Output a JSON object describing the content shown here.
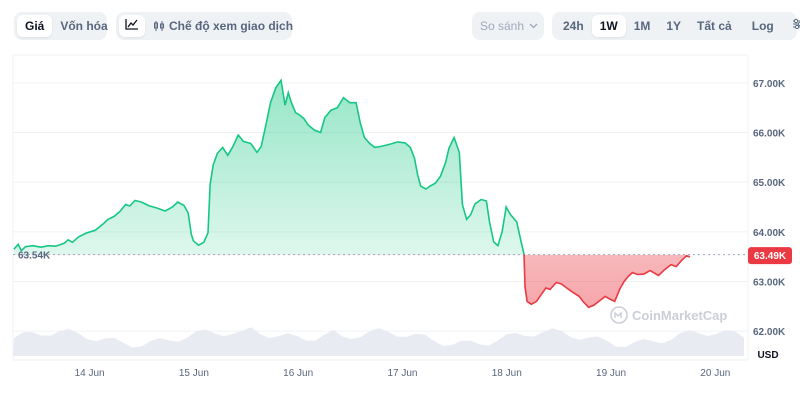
{
  "tabs": {
    "price": "Giá",
    "market_cap": "Vốn hóa",
    "mode_label": "Chế độ xem giao dịch",
    "compare": "So sánh"
  },
  "ranges": [
    "24h",
    "1W",
    "1M",
    "1Y",
    "Tất cả"
  ],
  "active_range": "1W",
  "log_label": "Log",
  "chart_data": {
    "type": "line",
    "unit": "USD",
    "ylim": [
      61500,
      67500
    ],
    "y_ticks": [
      {
        "v": 67000,
        "label": "67.00K"
      },
      {
        "v": 66000,
        "label": "66.00K"
      },
      {
        "v": 65000,
        "label": "65.00K"
      },
      {
        "v": 64000,
        "label": "64.00K"
      },
      {
        "v": 63000,
        "label": "63.00K"
      },
      {
        "v": 62000,
        "label": "62.00K"
      }
    ],
    "x_ticks": [
      {
        "t": 0.725,
        "label": "14 Jun"
      },
      {
        "t": 1.725,
        "label": "15 Jun"
      },
      {
        "t": 2.725,
        "label": "16 Jun"
      },
      {
        "t": 3.725,
        "label": "17 Jun"
      },
      {
        "t": 4.725,
        "label": "18 Jun"
      },
      {
        "t": 5.725,
        "label": "19 Jun"
      },
      {
        "t": 6.725,
        "label": "20 Jun"
      }
    ],
    "x_range": [
      0,
      7.0
    ],
    "reference_value": 63540,
    "reference_label": "63.54K",
    "current_label": "63.49K",
    "series": [
      {
        "points": [
          [
            0.0,
            63650
          ],
          [
            0.04,
            63750
          ],
          [
            0.07,
            63620
          ],
          [
            0.11,
            63700
          ],
          [
            0.18,
            63720
          ],
          [
            0.26,
            63690
          ],
          [
            0.33,
            63720
          ],
          [
            0.4,
            63710
          ],
          [
            0.48,
            63770
          ],
          [
            0.52,
            63840
          ],
          [
            0.56,
            63790
          ],
          [
            0.62,
            63900
          ],
          [
            0.7,
            63980
          ],
          [
            0.78,
            64030
          ],
          [
            0.85,
            64150
          ],
          [
            0.9,
            64250
          ],
          [
            0.96,
            64310
          ],
          [
            1.02,
            64420
          ],
          [
            1.07,
            64550
          ],
          [
            1.11,
            64520
          ],
          [
            1.16,
            64630
          ],
          [
            1.22,
            64600
          ],
          [
            1.3,
            64520
          ],
          [
            1.37,
            64480
          ],
          [
            1.45,
            64420
          ],
          [
            1.52,
            64500
          ],
          [
            1.57,
            64600
          ],
          [
            1.63,
            64530
          ],
          [
            1.67,
            64380
          ],
          [
            1.7,
            63950
          ],
          [
            1.72,
            63820
          ],
          [
            1.77,
            63730
          ],
          [
            1.82,
            63790
          ],
          [
            1.86,
            63980
          ],
          [
            1.88,
            64950
          ],
          [
            1.91,
            65350
          ],
          [
            1.95,
            65580
          ],
          [
            2.0,
            65700
          ],
          [
            2.05,
            65540
          ],
          [
            2.1,
            65720
          ],
          [
            2.15,
            65950
          ],
          [
            2.2,
            65820
          ],
          [
            2.27,
            65780
          ],
          [
            2.33,
            65600
          ],
          [
            2.37,
            65720
          ],
          [
            2.42,
            66200
          ],
          [
            2.46,
            66600
          ],
          [
            2.51,
            66900
          ],
          [
            2.56,
            67050
          ],
          [
            2.6,
            66550
          ],
          [
            2.63,
            66800
          ],
          [
            2.66,
            66600
          ],
          [
            2.7,
            66400
          ],
          [
            2.74,
            66350
          ],
          [
            2.78,
            66280
          ],
          [
            2.82,
            66150
          ],
          [
            2.88,
            66050
          ],
          [
            2.94,
            66000
          ],
          [
            2.98,
            66300
          ],
          [
            3.04,
            66450
          ],
          [
            3.1,
            66500
          ],
          [
            3.16,
            66700
          ],
          [
            3.22,
            66600
          ],
          [
            3.28,
            66600
          ],
          [
            3.32,
            66200
          ],
          [
            3.36,
            65900
          ],
          [
            3.41,
            65780
          ],
          [
            3.46,
            65700
          ],
          [
            3.52,
            65720
          ],
          [
            3.6,
            65760
          ],
          [
            3.68,
            65810
          ],
          [
            3.75,
            65790
          ],
          [
            3.8,
            65700
          ],
          [
            3.84,
            65480
          ],
          [
            3.87,
            65150
          ],
          [
            3.9,
            64920
          ],
          [
            3.95,
            64860
          ],
          [
            3.99,
            64920
          ],
          [
            4.04,
            64980
          ],
          [
            4.09,
            65120
          ],
          [
            4.14,
            65400
          ],
          [
            4.17,
            65680
          ],
          [
            4.22,
            65900
          ],
          [
            4.27,
            65600
          ],
          [
            4.3,
            64550
          ],
          [
            4.34,
            64250
          ],
          [
            4.38,
            64350
          ],
          [
            4.42,
            64560
          ],
          [
            4.48,
            64650
          ],
          [
            4.53,
            64620
          ],
          [
            4.56,
            64200
          ],
          [
            4.6,
            63800
          ],
          [
            4.64,
            63720
          ],
          [
            4.68,
            64000
          ],
          [
            4.72,
            64500
          ],
          [
            4.76,
            64350
          ],
          [
            4.82,
            64200
          ],
          [
            4.86,
            63830
          ],
          [
            4.89,
            63550
          ],
          [
            4.9,
            62900
          ],
          [
            4.92,
            62600
          ],
          [
            4.96,
            62540
          ],
          [
            5.01,
            62600
          ],
          [
            5.05,
            62720
          ],
          [
            5.1,
            62870
          ],
          [
            5.14,
            62840
          ],
          [
            5.2,
            62980
          ],
          [
            5.25,
            62950
          ],
          [
            5.3,
            62870
          ],
          [
            5.36,
            62780
          ],
          [
            5.42,
            62700
          ],
          [
            5.46,
            62590
          ],
          [
            5.51,
            62480
          ],
          [
            5.56,
            62520
          ],
          [
            5.62,
            62620
          ],
          [
            5.67,
            62700
          ],
          [
            5.71,
            62650
          ],
          [
            5.76,
            62600
          ],
          [
            5.81,
            62850
          ],
          [
            5.85,
            63000
          ],
          [
            5.89,
            63100
          ],
          [
            5.93,
            63180
          ],
          [
            5.98,
            63140
          ],
          [
            6.04,
            63150
          ],
          [
            6.1,
            63220
          ],
          [
            6.18,
            63120
          ],
          [
            6.24,
            63240
          ],
          [
            6.3,
            63340
          ],
          [
            6.35,
            63300
          ],
          [
            6.4,
            63420
          ],
          [
            6.45,
            63520
          ],
          [
            6.48,
            63490
          ]
        ]
      }
    ]
  },
  "watermark": "CoinMarketCap"
}
